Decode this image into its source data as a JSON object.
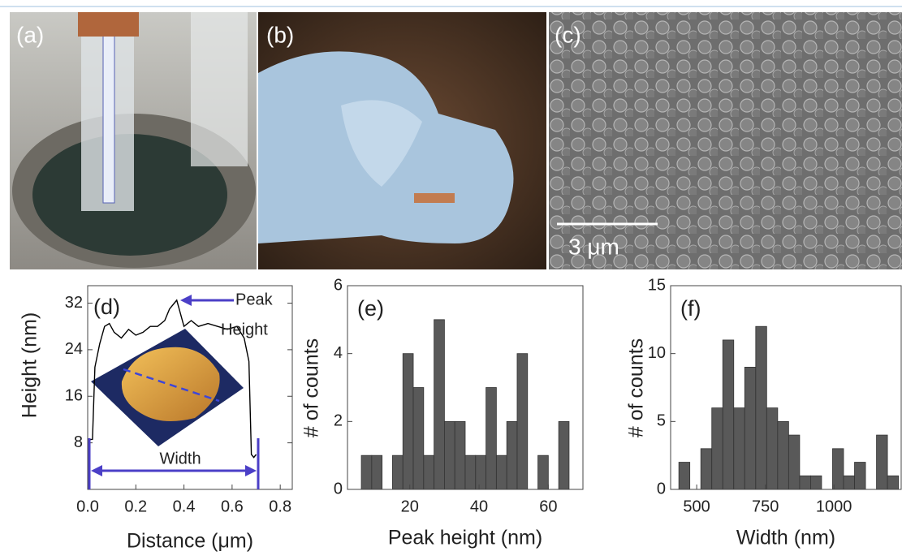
{
  "photos": [
    {
      "label": "(a)"
    },
    {
      "label": "(b)"
    },
    {
      "label": "(c)",
      "scale_bar": "3 μm"
    }
  ],
  "chart_data": [
    {
      "type": "line",
      "panel_label": "(d)",
      "xlabel": "Distance (μm)",
      "ylabel": "Height (nm)",
      "x": [
        0,
        0.02,
        0.03,
        0.05,
        0.07,
        0.09,
        0.11,
        0.14,
        0.17,
        0.2,
        0.23,
        0.26,
        0.29,
        0.32,
        0.34,
        0.36,
        0.37,
        0.38,
        0.4,
        0.43,
        0.46,
        0.5,
        0.54,
        0.58,
        0.62,
        0.65,
        0.67,
        0.68,
        0.69,
        0.7
      ],
      "values": [
        8.5,
        8.6,
        21,
        25,
        28,
        28.5,
        27,
        26,
        27.5,
        26.5,
        27,
        28,
        28,
        29,
        31,
        32,
        32.5,
        31,
        28,
        29,
        28,
        28.5,
        28,
        27.5,
        28,
        26,
        22,
        6,
        5.5,
        6
      ],
      "color": "#000000",
      "xlim": [
        0,
        0.85
      ],
      "ylim": [
        0,
        35
      ],
      "xticks": [
        {
          "value": 0,
          "label": "0.0"
        },
        0.2,
        0.4,
        0.6,
        0.8
      ],
      "yticks": [
        8,
        16,
        24,
        32
      ],
      "annotations": [
        "Peak",
        "Height",
        "Width"
      ]
    },
    {
      "type": "histogram",
      "panel_label": "(e)",
      "xlabel": "Peak height (nm)",
      "ylabel": "# of counts",
      "bins": [
        6,
        9,
        12,
        15,
        18,
        21,
        24,
        27,
        30,
        33,
        36,
        39,
        42,
        45,
        48,
        51,
        54,
        57,
        60,
        63,
        66
      ],
      "values": [
        1,
        1,
        0,
        1,
        4,
        3,
        1,
        5,
        2,
        2,
        1,
        1,
        3,
        1,
        2,
        4,
        0,
        1,
        0,
        2
      ],
      "color": "#595959",
      "xlim": [
        2,
        70
      ],
      "ylim": [
        0,
        6
      ],
      "xticks": [
        20,
        40,
        60
      ],
      "yticks": [
        0,
        2,
        4,
        6
      ]
    },
    {
      "type": "histogram",
      "panel_label": "(f)",
      "xlabel": "Width (nm)",
      "ylabel": "# of counts",
      "bins": [
        435,
        475,
        515,
        555,
        595,
        635,
        675,
        715,
        755,
        795,
        835,
        875,
        915,
        955,
        995,
        1035,
        1075,
        1115,
        1155,
        1195,
        1235
      ],
      "values": [
        2,
        0,
        3,
        6,
        11,
        6,
        9,
        12,
        6,
        5,
        4,
        1,
        1,
        0,
        3,
        1,
        2,
        0,
        4,
        1
      ],
      "color": "#595959",
      "xlim": [
        405,
        1245
      ],
      "ylim": [
        0,
        15
      ],
      "xticks": [
        500,
        750,
        1000
      ],
      "yticks": [
        0,
        5,
        10,
        15
      ]
    }
  ]
}
